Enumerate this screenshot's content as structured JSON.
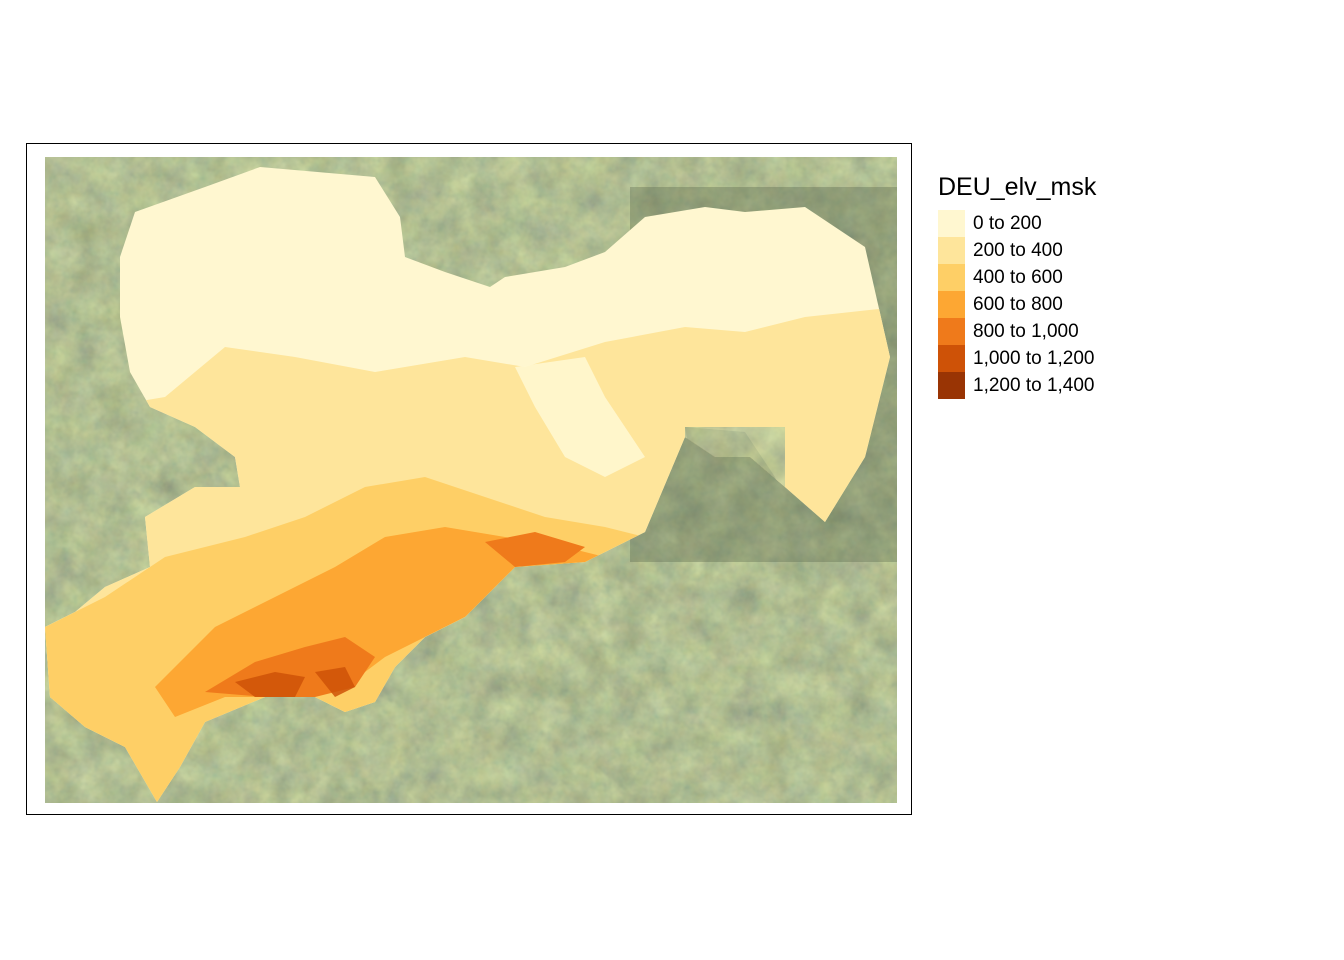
{
  "legend": {
    "title": "DEU_elv_msk",
    "items": [
      {
        "label": "0 to 200",
        "color": "#FFF7D0"
      },
      {
        "label": "200 to 400",
        "color": "#FEE59B"
      },
      {
        "label": "400 to 600",
        "color": "#FECF66"
      },
      {
        "label": "600 to 800",
        "color": "#FDA733"
      },
      {
        "label": "800 to 1,000",
        "color": "#EF7A1B"
      },
      {
        "label": "1,000 to 1,200",
        "color": "#CE5207"
      },
      {
        "label": "1,200 to 1,400",
        "color": "#993404"
      }
    ]
  },
  "map": {
    "basemap": "satellite-imagery",
    "basemap_colors": [
      "#4a5a3a",
      "#5b6646",
      "#6e6a4c",
      "#3e4c32",
      "#7a7056"
    ]
  }
}
